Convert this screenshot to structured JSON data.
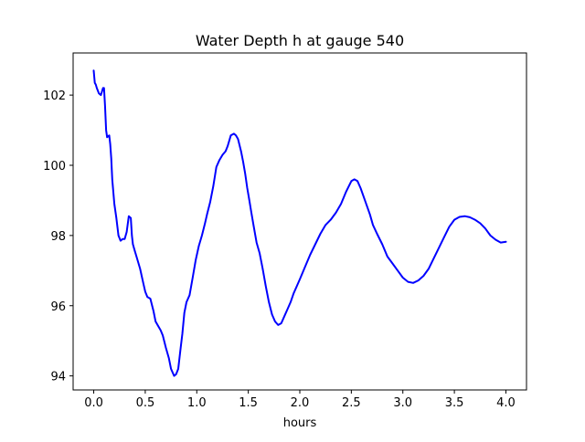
{
  "chart_data": {
    "type": "line",
    "title": "Water Depth h at gauge 540",
    "xlabel": "hours",
    "ylabel": "",
    "xlim": [
      -0.2,
      4.2
    ],
    "ylim": [
      93.6,
      103.2
    ],
    "xticks": [
      0.0,
      0.5,
      1.0,
      1.5,
      2.0,
      2.5,
      3.0,
      3.5,
      4.0
    ],
    "xtick_labels": [
      "0.0",
      "0.5",
      "1.0",
      "1.5",
      "2.0",
      "2.5",
      "3.0",
      "3.5",
      "4.0"
    ],
    "yticks": [
      94,
      96,
      98,
      100,
      102
    ],
    "ytick_labels": [
      "94",
      "96",
      "98",
      "100",
      "102"
    ],
    "grid": false,
    "series": [
      {
        "color": "#0000ff",
        "x": [
          0.0,
          0.01,
          0.02,
          0.03,
          0.05,
          0.07,
          0.09,
          0.1,
          0.11,
          0.12,
          0.13,
          0.15,
          0.16,
          0.17,
          0.18,
          0.2,
          0.22,
          0.24,
          0.26,
          0.28,
          0.3,
          0.32,
          0.34,
          0.36,
          0.37,
          0.38,
          0.4,
          0.42,
          0.45,
          0.48,
          0.5,
          0.52,
          0.55,
          0.58,
          0.6,
          0.62,
          0.65,
          0.67,
          0.7,
          0.73,
          0.75,
          0.78,
          0.8,
          0.82,
          0.84,
          0.86,
          0.88,
          0.9,
          0.93,
          0.96,
          0.99,
          1.02,
          1.05,
          1.08,
          1.1,
          1.13,
          1.16,
          1.19,
          1.22,
          1.25,
          1.28,
          1.3,
          1.33,
          1.36,
          1.38,
          1.4,
          1.43,
          1.45,
          1.47,
          1.49,
          1.51,
          1.53,
          1.55,
          1.58,
          1.61,
          1.64,
          1.67,
          1.7,
          1.73,
          1.76,
          1.79,
          1.82,
          1.85,
          1.88,
          1.91,
          1.94,
          1.97,
          2.0,
          2.05,
          2.1,
          2.15,
          2.2,
          2.25,
          2.3,
          2.35,
          2.4,
          2.45,
          2.5,
          2.53,
          2.56,
          2.59,
          2.62,
          2.65,
          2.68,
          2.71,
          2.75,
          2.8,
          2.85,
          2.9,
          2.95,
          3.0,
          3.05,
          3.1,
          3.15,
          3.2,
          3.25,
          3.3,
          3.35,
          3.4,
          3.45,
          3.5,
          3.55,
          3.6,
          3.65,
          3.7,
          3.75,
          3.8,
          3.85,
          3.9,
          3.95,
          4.0
        ],
        "y": [
          102.7,
          102.35,
          102.3,
          102.2,
          102.05,
          102.0,
          102.2,
          102.2,
          101.7,
          101.0,
          100.8,
          100.85,
          100.6,
          100.2,
          99.6,
          98.9,
          98.5,
          98.0,
          97.85,
          97.9,
          97.9,
          98.1,
          98.55,
          98.5,
          98.0,
          97.75,
          97.55,
          97.35,
          97.05,
          96.65,
          96.4,
          96.25,
          96.2,
          95.85,
          95.55,
          95.45,
          95.3,
          95.15,
          94.8,
          94.5,
          94.2,
          94.0,
          94.05,
          94.2,
          94.7,
          95.2,
          95.8,
          96.1,
          96.3,
          96.8,
          97.3,
          97.7,
          98.0,
          98.35,
          98.6,
          98.95,
          99.4,
          99.95,
          100.15,
          100.3,
          100.4,
          100.55,
          100.85,
          100.9,
          100.85,
          100.75,
          100.4,
          100.1,
          99.75,
          99.35,
          99.0,
          98.65,
          98.3,
          97.8,
          97.5,
          97.05,
          96.55,
          96.1,
          95.75,
          95.55,
          95.45,
          95.5,
          95.7,
          95.9,
          96.1,
          96.35,
          96.55,
          96.75,
          97.1,
          97.45,
          97.75,
          98.05,
          98.3,
          98.45,
          98.65,
          98.9,
          99.25,
          99.55,
          99.6,
          99.55,
          99.35,
          99.1,
          98.85,
          98.6,
          98.3,
          98.05,
          97.75,
          97.4,
          97.2,
          97.0,
          96.8,
          96.68,
          96.65,
          96.72,
          96.85,
          97.05,
          97.35,
          97.65,
          97.95,
          98.25,
          98.45,
          98.53,
          98.55,
          98.52,
          98.45,
          98.35,
          98.2,
          98.0,
          97.88,
          97.8,
          97.82
        ]
      }
    ]
  }
}
